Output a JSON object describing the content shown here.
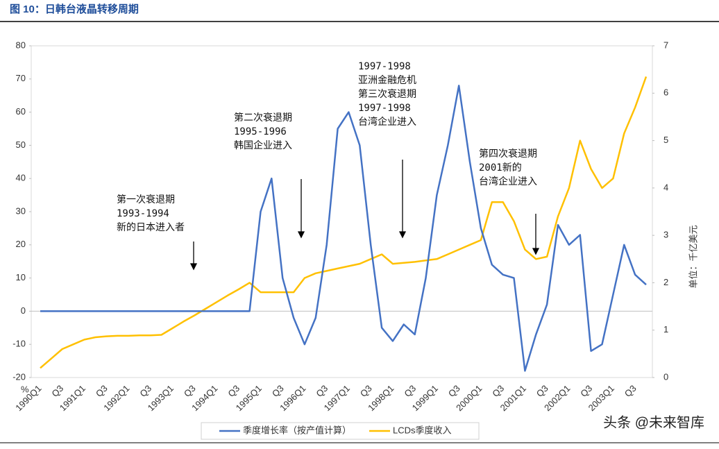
{
  "chart_data": {
    "type": "line",
    "title": "图 10：日韩台液晶转移周期",
    "y_unit": "%",
    "y2_label": "单位：千亿美元",
    "categories": [
      "1990Q1",
      null,
      "Q3",
      null,
      "1991Q1",
      null,
      "Q3",
      null,
      "1992Q1",
      null,
      "Q3",
      null,
      "1993Q1",
      null,
      "Q3",
      null,
      "1994Q1",
      null,
      "Q3",
      null,
      "1995Q1",
      null,
      "Q3",
      null,
      "1996Q1",
      null,
      "Q3",
      null,
      "1997Q1",
      null,
      "Q3",
      null,
      "1998Q1",
      null,
      "Q3",
      null,
      "1999Q1",
      null,
      "Q3",
      null,
      "2000Q1",
      null,
      "Q3",
      null,
      "2001Q1",
      null,
      "Q3",
      null,
      "2002Q1",
      null,
      "Q3",
      null,
      "2003Q1",
      null,
      "Q3",
      null
    ],
    "series": [
      {
        "name": "季度增长率（按产值计算）",
        "color": "#4472c4",
        "axis": "y",
        "values": [
          0,
          0,
          0,
          0,
          0,
          0,
          0,
          0,
          0,
          0,
          0,
          0,
          0,
          0,
          0,
          0,
          0,
          0,
          0,
          0,
          30,
          40,
          10,
          -2,
          -10,
          -2,
          20,
          55,
          60,
          50,
          20,
          -5,
          -9,
          -4,
          -7,
          10,
          35,
          50,
          68,
          45,
          25,
          14,
          11,
          10,
          -18,
          -7,
          2,
          26,
          20,
          23,
          -12,
          -10,
          5,
          20,
          11,
          8
        ]
      },
      {
        "name": "LCDs季度收入",
        "color": "#ffc000",
        "axis": "y2",
        "values": [
          0.2,
          0.4,
          0.6,
          0.7,
          0.8,
          0.85,
          0.87,
          0.88,
          0.88,
          0.89,
          0.89,
          0.9,
          1.04,
          1.18,
          1.31,
          1.45,
          1.59,
          1.73,
          1.86,
          2.0,
          1.8,
          1.8,
          1.8,
          1.8,
          2.1,
          2.2,
          2.25,
          2.3,
          2.35,
          2.4,
          2.5,
          2.6,
          2.4,
          2.42,
          2.44,
          2.47,
          2.5,
          2.6,
          2.7,
          2.8,
          2.9,
          3.7,
          3.7,
          3.3,
          2.7,
          2.5,
          2.55,
          3.4,
          4.0,
          5.0,
          4.4,
          4.0,
          4.2,
          5.15,
          5.7,
          6.35
        ]
      }
    ],
    "ylim": [
      -20,
      80
    ],
    "yticks": [
      -20,
      -10,
      0,
      10,
      20,
      30,
      40,
      50,
      60,
      70,
      80
    ],
    "y2lim": [
      0,
      7
    ],
    "y2ticks": [
      0,
      1,
      2,
      3,
      4,
      5,
      6,
      7
    ],
    "annotations": [
      {
        "lines": [
          "第一次衰退期",
          "1993-1994",
          "新的日本进入者"
        ]
      },
      {
        "lines": [
          "第二次衰退期",
          "1995-1996",
          "韩国企业进入"
        ]
      },
      {
        "lines": [
          "1997-1998",
          "亚洲金融危机",
          "第三次衰退期",
          "1997-1998",
          "台湾企业进入"
        ]
      },
      {
        "lines": [
          "第四次衰退期",
          "2001新的",
          "台湾企业进入"
        ]
      }
    ],
    "watermark": "头条 @未来智库"
  }
}
